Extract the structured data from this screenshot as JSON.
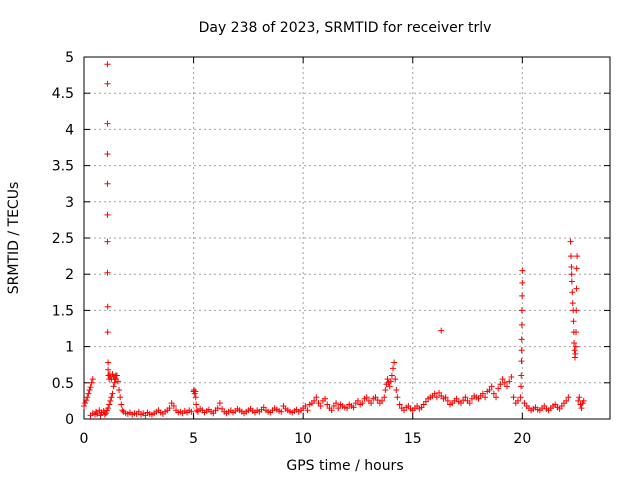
{
  "chart_data": {
    "type": "scatter",
    "title": "Day 238 of 2023, SRMTID for receiver trlv",
    "xlabel": "GPS time / hours",
    "ylabel": "SRMTID / TECUs",
    "xlim": [
      0,
      24
    ],
    "ylim": [
      0,
      5
    ],
    "grid": true,
    "legend": "none",
    "marker": "+",
    "x_ticks": [
      0,
      5,
      10,
      15,
      20
    ],
    "x_tick_labels": [
      "0",
      "5",
      "10",
      "15",
      "20"
    ],
    "y_ticks": [
      0,
      0.5,
      1,
      1.5,
      2,
      2.5,
      3,
      3.5,
      4,
      4.5,
      5
    ],
    "y_tick_labels": [
      "0",
      "0.5",
      "1",
      "1.5",
      "2",
      "2.5",
      "3",
      "3.5",
      "4",
      "4.5",
      "5"
    ],
    "colors": {
      "marker": "#ff0000",
      "grid": "#a0a0a0",
      "axis": "#000000"
    },
    "series": [
      {
        "name": "SRMTID",
        "points": [
          [
            0.0,
            0.18
          ],
          [
            0.05,
            0.22
          ],
          [
            0.1,
            0.26
          ],
          [
            0.15,
            0.3
          ],
          [
            0.2,
            0.35
          ],
          [
            0.25,
            0.4
          ],
          [
            0.3,
            0.44
          ],
          [
            0.35,
            0.5
          ],
          [
            0.4,
            0.55
          ],
          [
            0.3,
            0.05
          ],
          [
            0.4,
            0.08
          ],
          [
            0.5,
            0.06
          ],
          [
            0.55,
            0.1
          ],
          [
            0.6,
            0.07
          ],
          [
            0.7,
            0.12
          ],
          [
            0.75,
            0.05
          ],
          [
            0.8,
            0.09
          ],
          [
            0.9,
            0.11
          ],
          [
            0.95,
            0.06
          ],
          [
            1.0,
            0.08
          ],
          [
            1.05,
            0.12
          ],
          [
            1.1,
            0.15
          ],
          [
            1.15,
            0.2
          ],
          [
            1.2,
            0.25
          ],
          [
            1.25,
            0.3
          ],
          [
            1.3,
            0.35
          ],
          [
            1.35,
            0.45
          ],
          [
            1.4,
            0.5
          ],
          [
            1.45,
            0.55
          ],
          [
            1.5,
            0.6
          ],
          [
            1.55,
            0.52
          ],
          [
            1.6,
            0.4
          ],
          [
            1.65,
            0.3
          ],
          [
            1.7,
            0.2
          ],
          [
            1.75,
            0.12
          ],
          [
            1.1,
            0.78
          ],
          [
            1.1,
            0.68
          ],
          [
            1.12,
            0.6
          ],
          [
            1.15,
            0.55
          ],
          [
            1.18,
            0.62
          ],
          [
            1.2,
            0.58
          ],
          [
            1.25,
            0.55
          ],
          [
            1.3,
            0.62
          ],
          [
            1.35,
            0.58
          ],
          [
            1.4,
            0.55
          ],
          [
            1.45,
            0.6
          ],
          [
            1.08,
            1.2
          ],
          [
            1.08,
            1.55
          ],
          [
            1.07,
            2.02
          ],
          [
            1.07,
            2.45
          ],
          [
            1.07,
            2.82
          ],
          [
            1.07,
            3.25
          ],
          [
            1.07,
            3.66
          ],
          [
            1.07,
            4.08
          ],
          [
            1.07,
            4.63
          ],
          [
            1.07,
            4.9
          ],
          [
            1.8,
            0.1
          ],
          [
            1.9,
            0.08
          ],
          [
            2.0,
            0.07
          ],
          [
            2.1,
            0.09
          ],
          [
            2.2,
            0.06
          ],
          [
            2.3,
            0.08
          ],
          [
            2.4,
            0.07
          ],
          [
            2.5,
            0.1
          ],
          [
            2.6,
            0.06
          ],
          [
            2.7,
            0.08
          ],
          [
            2.8,
            0.05
          ],
          [
            2.9,
            0.09
          ],
          [
            3.0,
            0.07
          ],
          [
            3.1,
            0.06
          ],
          [
            3.2,
            0.08
          ],
          [
            3.3,
            0.1
          ],
          [
            3.4,
            0.12
          ],
          [
            3.5,
            0.09
          ],
          [
            3.6,
            0.07
          ],
          [
            3.7,
            0.1
          ],
          [
            3.8,
            0.12
          ],
          [
            3.9,
            0.15
          ],
          [
            4.0,
            0.22
          ],
          [
            4.1,
            0.18
          ],
          [
            4.2,
            0.12
          ],
          [
            4.3,
            0.09
          ],
          [
            4.4,
            0.1
          ],
          [
            4.5,
            0.08
          ],
          [
            4.6,
            0.11
          ],
          [
            4.7,
            0.09
          ],
          [
            4.8,
            0.12
          ],
          [
            4.9,
            0.1
          ],
          [
            5.0,
            0.38
          ],
          [
            5.02,
            0.4
          ],
          [
            5.05,
            0.35
          ],
          [
            5.08,
            0.38
          ],
          [
            5.1,
            0.3
          ],
          [
            5.12,
            0.2
          ],
          [
            5.15,
            0.12
          ],
          [
            5.2,
            0.1
          ],
          [
            5.3,
            0.14
          ],
          [
            5.4,
            0.12
          ],
          [
            5.5,
            0.09
          ],
          [
            5.6,
            0.11
          ],
          [
            5.7,
            0.13
          ],
          [
            5.8,
            0.1
          ],
          [
            5.9,
            0.08
          ],
          [
            6.0,
            0.12
          ],
          [
            6.1,
            0.15
          ],
          [
            6.2,
            0.22
          ],
          [
            6.3,
            0.14
          ],
          [
            6.4,
            0.1
          ],
          [
            6.5,
            0.08
          ],
          [
            6.6,
            0.1
          ],
          [
            6.7,
            0.12
          ],
          [
            6.8,
            0.09
          ],
          [
            6.9,
            0.11
          ],
          [
            7.0,
            0.14
          ],
          [
            7.1,
            0.12
          ],
          [
            7.2,
            0.1
          ],
          [
            7.3,
            0.08
          ],
          [
            7.4,
            0.1
          ],
          [
            7.5,
            0.12
          ],
          [
            7.6,
            0.14
          ],
          [
            7.7,
            0.11
          ],
          [
            7.8,
            0.09
          ],
          [
            7.9,
            0.12
          ],
          [
            8.0,
            0.1
          ],
          [
            8.1,
            0.13
          ],
          [
            8.2,
            0.16
          ],
          [
            8.3,
            0.12
          ],
          [
            8.4,
            0.1
          ],
          [
            8.5,
            0.09
          ],
          [
            8.6,
            0.12
          ],
          [
            8.7,
            0.15
          ],
          [
            8.8,
            0.13
          ],
          [
            8.9,
            0.11
          ],
          [
            9.0,
            0.1
          ],
          [
            9.1,
            0.18
          ],
          [
            9.2,
            0.14
          ],
          [
            9.3,
            0.12
          ],
          [
            9.4,
            0.1
          ],
          [
            9.5,
            0.09
          ],
          [
            9.6,
            0.11
          ],
          [
            9.7,
            0.13
          ],
          [
            9.8,
            0.1
          ],
          [
            9.9,
            0.12
          ],
          [
            10.0,
            0.15
          ],
          [
            10.1,
            0.18
          ],
          [
            10.2,
            0.12
          ],
          [
            10.3,
            0.2
          ],
          [
            10.4,
            0.22
          ],
          [
            10.5,
            0.25
          ],
          [
            10.6,
            0.3
          ],
          [
            10.7,
            0.22
          ],
          [
            10.8,
            0.18
          ],
          [
            10.9,
            0.25
          ],
          [
            11.0,
            0.28
          ],
          [
            11.1,
            0.2
          ],
          [
            11.2,
            0.15
          ],
          [
            11.3,
            0.12
          ],
          [
            11.4,
            0.18
          ],
          [
            11.5,
            0.22
          ],
          [
            11.6,
            0.15
          ],
          [
            11.7,
            0.2
          ],
          [
            11.8,
            0.18
          ],
          [
            11.9,
            0.16
          ],
          [
            12.0,
            0.15
          ],
          [
            12.1,
            0.2
          ],
          [
            12.2,
            0.18
          ],
          [
            12.3,
            0.16
          ],
          [
            12.4,
            0.22
          ],
          [
            12.5,
            0.25
          ],
          [
            12.6,
            0.2
          ],
          [
            12.7,
            0.22
          ],
          [
            12.8,
            0.28
          ],
          [
            12.9,
            0.3
          ],
          [
            13.0,
            0.25
          ],
          [
            13.1,
            0.22
          ],
          [
            13.2,
            0.28
          ],
          [
            13.3,
            0.3
          ],
          [
            13.4,
            0.26
          ],
          [
            13.5,
            0.22
          ],
          [
            13.6,
            0.25
          ],
          [
            13.7,
            0.3
          ],
          [
            13.75,
            0.4
          ],
          [
            13.8,
            0.48
          ],
          [
            13.85,
            0.55
          ],
          [
            13.9,
            0.5
          ],
          [
            13.95,
            0.45
          ],
          [
            14.0,
            0.52
          ],
          [
            14.05,
            0.6
          ],
          [
            14.1,
            0.7
          ],
          [
            14.15,
            0.78
          ],
          [
            14.2,
            0.55
          ],
          [
            14.25,
            0.4
          ],
          [
            14.3,
            0.3
          ],
          [
            14.4,
            0.2
          ],
          [
            14.5,
            0.15
          ],
          [
            14.6,
            0.12
          ],
          [
            14.7,
            0.16
          ],
          [
            14.8,
            0.18
          ],
          [
            14.9,
            0.14
          ],
          [
            15.0,
            0.12
          ],
          [
            15.1,
            0.15
          ],
          [
            15.2,
            0.18
          ],
          [
            15.3,
            0.14
          ],
          [
            15.4,
            0.16
          ],
          [
            15.5,
            0.2
          ],
          [
            15.6,
            0.24
          ],
          [
            15.7,
            0.28
          ],
          [
            15.8,
            0.3
          ],
          [
            15.9,
            0.32
          ],
          [
            16.0,
            0.35
          ],
          [
            16.1,
            0.3
          ],
          [
            16.2,
            0.36
          ],
          [
            16.3,
            0.32
          ],
          [
            16.4,
            0.28
          ],
          [
            16.5,
            0.3
          ],
          [
            16.3,
            1.22
          ],
          [
            16.6,
            0.25
          ],
          [
            16.7,
            0.2
          ],
          [
            16.8,
            0.22
          ],
          [
            16.9,
            0.25
          ],
          [
            17.0,
            0.28
          ],
          [
            17.1,
            0.24
          ],
          [
            17.2,
            0.22
          ],
          [
            17.3,
            0.26
          ],
          [
            17.4,
            0.3
          ],
          [
            17.5,
            0.25
          ],
          [
            17.6,
            0.22
          ],
          [
            17.7,
            0.28
          ],
          [
            17.8,
            0.32
          ],
          [
            17.9,
            0.3
          ],
          [
            18.0,
            0.28
          ],
          [
            18.1,
            0.32
          ],
          [
            18.2,
            0.35
          ],
          [
            18.3,
            0.3
          ],
          [
            18.4,
            0.38
          ],
          [
            18.5,
            0.4
          ],
          [
            18.6,
            0.45
          ],
          [
            18.7,
            0.35
          ],
          [
            18.8,
            0.3
          ],
          [
            18.9,
            0.42
          ],
          [
            19.0,
            0.48
          ],
          [
            19.1,
            0.55
          ],
          [
            19.2,
            0.5
          ],
          [
            19.3,
            0.45
          ],
          [
            19.4,
            0.52
          ],
          [
            19.5,
            0.58
          ],
          [
            19.6,
            0.3
          ],
          [
            19.7,
            0.22
          ],
          [
            19.8,
            0.25
          ],
          [
            19.92,
            0.3
          ],
          [
            19.94,
            0.45
          ],
          [
            19.95,
            0.6
          ],
          [
            19.96,
            0.8
          ],
          [
            19.97,
            0.95
          ],
          [
            19.97,
            1.1
          ],
          [
            19.98,
            1.3
          ],
          [
            19.98,
            1.5
          ],
          [
            19.99,
            1.7
          ],
          [
            20.0,
            1.88
          ],
          [
            20.0,
            2.05
          ],
          [
            20.1,
            0.22
          ],
          [
            20.2,
            0.18
          ],
          [
            20.3,
            0.15
          ],
          [
            20.4,
            0.12
          ],
          [
            20.5,
            0.14
          ],
          [
            20.6,
            0.16
          ],
          [
            20.7,
            0.13
          ],
          [
            20.8,
            0.12
          ],
          [
            20.9,
            0.15
          ],
          [
            21.0,
            0.18
          ],
          [
            21.1,
            0.14
          ],
          [
            21.2,
            0.12
          ],
          [
            21.3,
            0.15
          ],
          [
            21.4,
            0.18
          ],
          [
            21.5,
            0.2
          ],
          [
            21.6,
            0.16
          ],
          [
            21.7,
            0.14
          ],
          [
            21.8,
            0.18
          ],
          [
            21.9,
            0.22
          ],
          [
            22.0,
            0.25
          ],
          [
            22.1,
            0.3
          ],
          [
            22.2,
            2.45
          ],
          [
            22.22,
            2.25
          ],
          [
            22.24,
            2.1
          ],
          [
            22.25,
            2.0
          ],
          [
            22.26,
            1.9
          ],
          [
            22.28,
            1.75
          ],
          [
            22.3,
            1.6
          ],
          [
            22.32,
            1.5
          ],
          [
            22.34,
            1.35
          ],
          [
            22.35,
            1.2
          ],
          [
            22.36,
            1.05
          ],
          [
            22.38,
            0.95
          ],
          [
            22.4,
            0.85
          ],
          [
            22.42,
            0.9
          ],
          [
            22.44,
            1.0
          ],
          [
            22.45,
            1.2
          ],
          [
            22.46,
            1.5
          ],
          [
            22.47,
            1.8
          ],
          [
            22.48,
            2.08
          ],
          [
            22.5,
            2.25
          ],
          [
            22.55,
            0.25
          ],
          [
            22.6,
            0.3
          ],
          [
            22.65,
            0.2
          ],
          [
            22.7,
            0.15
          ],
          [
            22.75,
            0.22
          ],
          [
            22.8,
            0.25
          ]
        ]
      }
    ]
  }
}
